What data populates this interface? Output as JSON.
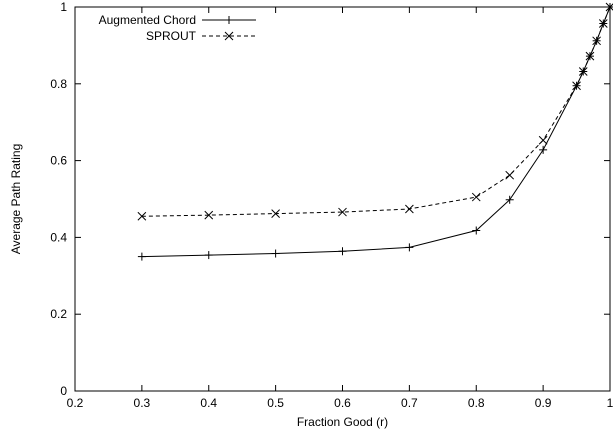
{
  "chart_data": {
    "type": "line",
    "title": "",
    "xlabel": "Fraction Good (r)",
    "ylabel": "Average Path Rating",
    "xlim": [
      0.2,
      1.0
    ],
    "ylim": [
      0,
      1
    ],
    "x_ticks": [
      0.2,
      0.3,
      0.4,
      0.5,
      0.6,
      0.7,
      0.8,
      0.9,
      1.0
    ],
    "x_tick_labels": [
      "0.2",
      "0.3",
      "0.4",
      "0.5",
      "0.6",
      "0.7",
      "0.8",
      "0.9",
      "1"
    ],
    "y_ticks": [
      0,
      0.2,
      0.4,
      0.6,
      0.8,
      1.0
    ],
    "y_tick_labels": [
      "0",
      "0.2",
      "0.4",
      "0.6",
      "0.8",
      "1"
    ],
    "grid": false,
    "legend_position": "top-left",
    "series": [
      {
        "name": "Augmented Chord",
        "line_style": "solid",
        "marker": "plus",
        "color": "#000000",
        "x": [
          0.3,
          0.4,
          0.5,
          0.6,
          0.7,
          0.8,
          0.85,
          0.9,
          0.95,
          0.96,
          0.97,
          0.98,
          0.99,
          1.0
        ],
        "y": [
          0.35,
          0.354,
          0.358,
          0.364,
          0.374,
          0.418,
          0.498,
          0.628,
          0.795,
          0.832,
          0.872,
          0.912,
          0.957,
          1.0
        ]
      },
      {
        "name": "SPROUT",
        "line_style": "dashed",
        "marker": "cross",
        "color": "#000000",
        "x": [
          0.3,
          0.4,
          0.5,
          0.6,
          0.7,
          0.8,
          0.85,
          0.9,
          0.95,
          0.96,
          0.97,
          0.98,
          0.99,
          1.0
        ],
        "y": [
          0.455,
          0.458,
          0.462,
          0.466,
          0.474,
          0.505,
          0.562,
          0.653,
          0.795,
          0.832,
          0.872,
          0.912,
          0.957,
          1.0
        ]
      }
    ]
  }
}
